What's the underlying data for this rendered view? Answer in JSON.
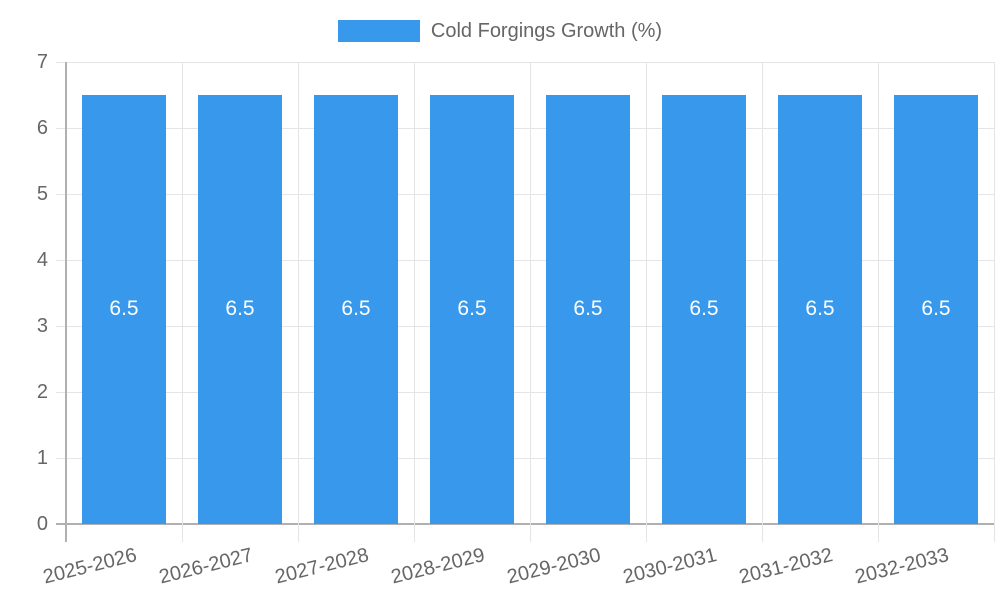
{
  "chart_data": {
    "type": "bar",
    "title": "",
    "xlabel": "",
    "ylabel": "",
    "legend": {
      "label": "Cold Forgings Growth (%)",
      "position": "top"
    },
    "categories": [
      "2025-2026",
      "2026-2027",
      "2027-2028",
      "2028-2029",
      "2029-2030",
      "2030-2031",
      "2031-2032",
      "2032-2033"
    ],
    "series": [
      {
        "name": "Cold Forgings Growth (%)",
        "values": [
          6.5,
          6.5,
          6.5,
          6.5,
          6.5,
          6.5,
          6.5,
          6.5
        ],
        "bar_labels": [
          "6.5",
          "6.5",
          "6.5",
          "6.5",
          "6.5",
          "6.5",
          "6.5",
          "6.5"
        ]
      }
    ],
    "ylim": [
      0,
      7
    ],
    "y_ticks": [
      0,
      1,
      2,
      3,
      4,
      5,
      6,
      7
    ],
    "grid": true,
    "x_label_rotation_deg": -14,
    "legend_position": "top",
    "colors": {
      "bar": "#3899ec",
      "grid_line": "#e5e5e5",
      "axis_line": "#b0b0b0",
      "tick_text": "#666666",
      "legend_text": "#666666",
      "bar_label_text": "#ffffff",
      "background": "#ffffff"
    }
  }
}
